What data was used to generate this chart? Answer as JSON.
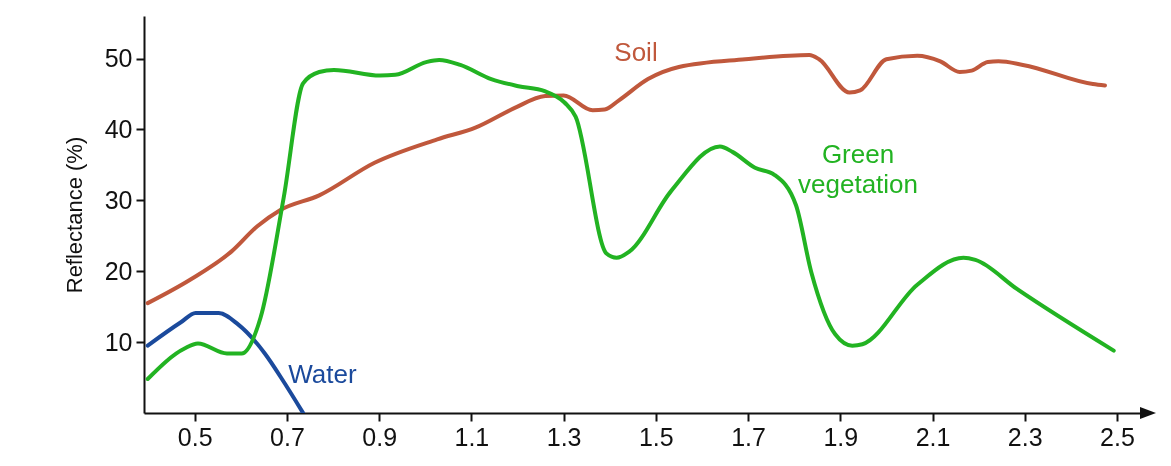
{
  "chart_data": {
    "type": "line",
    "ylabel": "Reflectance (%)",
    "xlim": [
      0.39,
      2.55
    ],
    "ylim": [
      0,
      56
    ],
    "xticks": [
      0.5,
      0.7,
      0.9,
      1.1,
      1.3,
      1.5,
      1.7,
      1.9,
      2.1,
      2.3,
      2.5
    ],
    "yticks": [
      10,
      20,
      30,
      40,
      50
    ],
    "grid": false,
    "marker": "none",
    "line_style": "solid",
    "series": [
      {
        "name": "Soil",
        "color": "#c0583c",
        "x": [
          0.398,
          0.49,
          0.58,
          0.635,
          0.685,
          0.77,
          0.89,
          1.026,
          1.11,
          1.193,
          1.26,
          1.3,
          1.363,
          1.389,
          1.42,
          1.483,
          1.55,
          1.694,
          1.833,
          1.854,
          1.92,
          1.943,
          2.0,
          2.067,
          2.117,
          2.159,
          2.185,
          2.22,
          2.243,
          2.296,
          2.448,
          2.474
        ],
        "values": [
          15.5,
          18.8,
          22.8,
          26.3,
          28.6,
          30.7,
          35.3,
          38.6,
          40.3,
          43,
          44.7,
          44.8,
          42.7,
          42.8,
          44.1,
          47.1,
          48.8,
          49.9,
          50.5,
          49.9,
          45.2,
          45.5,
          49.9,
          50.4,
          49.6,
          48.1,
          48.3,
          49.5,
          49.6,
          49.1,
          46.4,
          46.2
        ]
      },
      {
        "name": "Water",
        "color": "#1b4a9c",
        "x": [
          0.398,
          0.47,
          0.502,
          0.552,
          0.594,
          0.652,
          0.694,
          0.735
        ],
        "values": [
          9.5,
          12.8,
          14.1,
          14.1,
          12.5,
          8.4,
          4.3,
          0
        ]
      },
      {
        "name": "Green vegetation",
        "color": "#22b322",
        "x": [
          0.398,
          0.478,
          0.507,
          0.57,
          0.602,
          0.643,
          0.693,
          0.735,
          0.77,
          0.802,
          0.902,
          0.935,
          1.002,
          1.03,
          1.076,
          1.143,
          1.202,
          1.259,
          1.302,
          1.326,
          1.393,
          1.415,
          1.443,
          1.533,
          1.639,
          1.667,
          1.715,
          1.757,
          1.804,
          1.837,
          1.889,
          1.926,
          1.948,
          2.067,
          2.167,
          2.193,
          2.283,
          2.493
        ],
        "values": [
          4.8,
          9.1,
          9.8,
          8.4,
          8.4,
          13.5,
          30.4,
          46.5,
          48.1,
          48.4,
          47.6,
          47.7,
          49.5,
          49.8,
          49.1,
          47.1,
          46.1,
          45.4,
          43.8,
          41.8,
          22.5,
          21.9,
          22.8,
          31.3,
          37.6,
          36.8,
          34.6,
          33.6,
          29.3,
          19.9,
          11.1,
          9.5,
          9.7,
          18.1,
          21.9,
          21.6,
          17.5,
          8.8
        ]
      }
    ]
  }
}
